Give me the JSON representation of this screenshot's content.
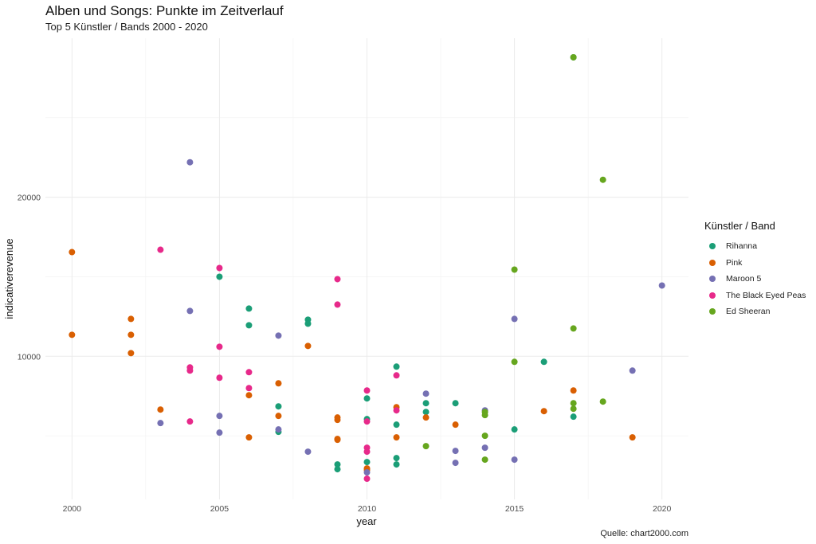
{
  "chart_data": {
    "type": "scatter",
    "title": "Alben und Songs: Punkte im Zeitverlauf",
    "subtitle": "Top 5 Künstler / Bands 2000 - 2020",
    "xlabel": "year",
    "ylabel": "indicativerevenue",
    "caption": "Quelle: chart2000.com",
    "legend_title": "Künstler / Band",
    "legend_position": "right",
    "grid": true,
    "xlim": [
      1999.1,
      2020.9
    ],
    "ylim": [
      1000,
      30000
    ],
    "x_ticks": [
      2000,
      2005,
      2010,
      2015,
      2020
    ],
    "y_ticks": [
      10000,
      20000
    ],
    "series": [
      {
        "name": "Rihanna",
        "color": "#1b9e77",
        "points": [
          [
            2005,
            15000
          ],
          [
            2006,
            13000
          ],
          [
            2006,
            11950
          ],
          [
            2007,
            6850
          ],
          [
            2007,
            5250
          ],
          [
            2008,
            12300
          ],
          [
            2008,
            12050
          ],
          [
            2009,
            3200
          ],
          [
            2009,
            2900
          ],
          [
            2010,
            7350
          ],
          [
            2010,
            6050
          ],
          [
            2010,
            3350
          ],
          [
            2011,
            9350
          ],
          [
            2011,
            5700
          ],
          [
            2011,
            3600
          ],
          [
            2011,
            3200
          ],
          [
            2012,
            7050
          ],
          [
            2012,
            6500
          ],
          [
            2013,
            7050
          ],
          [
            2015,
            5400
          ],
          [
            2016,
            9650
          ],
          [
            2017,
            6200
          ],
          [
            2017,
            28800
          ]
        ]
      },
      {
        "name": "Pink",
        "color": "#d95f02",
        "points": [
          [
            2000,
            16550
          ],
          [
            2000,
            11350
          ],
          [
            2002,
            12350
          ],
          [
            2002,
            11350
          ],
          [
            2002,
            10200
          ],
          [
            2003,
            6650
          ],
          [
            2006,
            7550
          ],
          [
            2006,
            4900
          ],
          [
            2007,
            8300
          ],
          [
            2007,
            6250
          ],
          [
            2008,
            10650
          ],
          [
            2009,
            6150
          ],
          [
            2009,
            6000
          ],
          [
            2009,
            4800
          ],
          [
            2009,
            4750
          ],
          [
            2010,
            2950
          ],
          [
            2010,
            2850
          ],
          [
            2011,
            6800
          ],
          [
            2011,
            4900
          ],
          [
            2012,
            6150
          ],
          [
            2013,
            5700
          ],
          [
            2016,
            6550
          ],
          [
            2017,
            7850
          ],
          [
            2019,
            4900
          ]
        ]
      },
      {
        "name": "Maroon 5",
        "color": "#7570b3",
        "points": [
          [
            2003,
            5800
          ],
          [
            2004,
            22200
          ],
          [
            2004,
            12850
          ],
          [
            2005,
            6250
          ],
          [
            2005,
            5200
          ],
          [
            2007,
            11300
          ],
          [
            2007,
            5400
          ],
          [
            2008,
            4000
          ],
          [
            2010,
            2700
          ],
          [
            2012,
            7650
          ],
          [
            2013,
            4050
          ],
          [
            2013,
            3300
          ],
          [
            2014,
            6600
          ],
          [
            2014,
            4250
          ],
          [
            2015,
            12350
          ],
          [
            2015,
            3500
          ],
          [
            2019,
            9100
          ],
          [
            2020,
            14450
          ]
        ]
      },
      {
        "name": "The Black Eyed Peas",
        "color": "#e7298a",
        "points": [
          [
            2003,
            16700
          ],
          [
            2004,
            9300
          ],
          [
            2004,
            9100
          ],
          [
            2004,
            5900
          ],
          [
            2005,
            15550
          ],
          [
            2005,
            10600
          ],
          [
            2005,
            8650
          ],
          [
            2006,
            9000
          ],
          [
            2006,
            8000
          ],
          [
            2009,
            14850
          ],
          [
            2009,
            13250
          ],
          [
            2010,
            7850
          ],
          [
            2010,
            5900
          ],
          [
            2010,
            4250
          ],
          [
            2010,
            4000
          ],
          [
            2010,
            2300
          ],
          [
            2011,
            8800
          ],
          [
            2011,
            6600
          ]
        ]
      },
      {
        "name": "Ed Sheeran",
        "color": "#66a61e",
        "points": [
          [
            2012,
            4350
          ],
          [
            2014,
            6500
          ],
          [
            2014,
            6300
          ],
          [
            2014,
            5000
          ],
          [
            2014,
            3500
          ],
          [
            2015,
            15450
          ],
          [
            2015,
            9650
          ],
          [
            2017,
            28800
          ],
          [
            2017,
            11750
          ],
          [
            2017,
            7050
          ],
          [
            2017,
            6700
          ],
          [
            2018,
            21100
          ],
          [
            2018,
            7150
          ]
        ]
      }
    ]
  }
}
